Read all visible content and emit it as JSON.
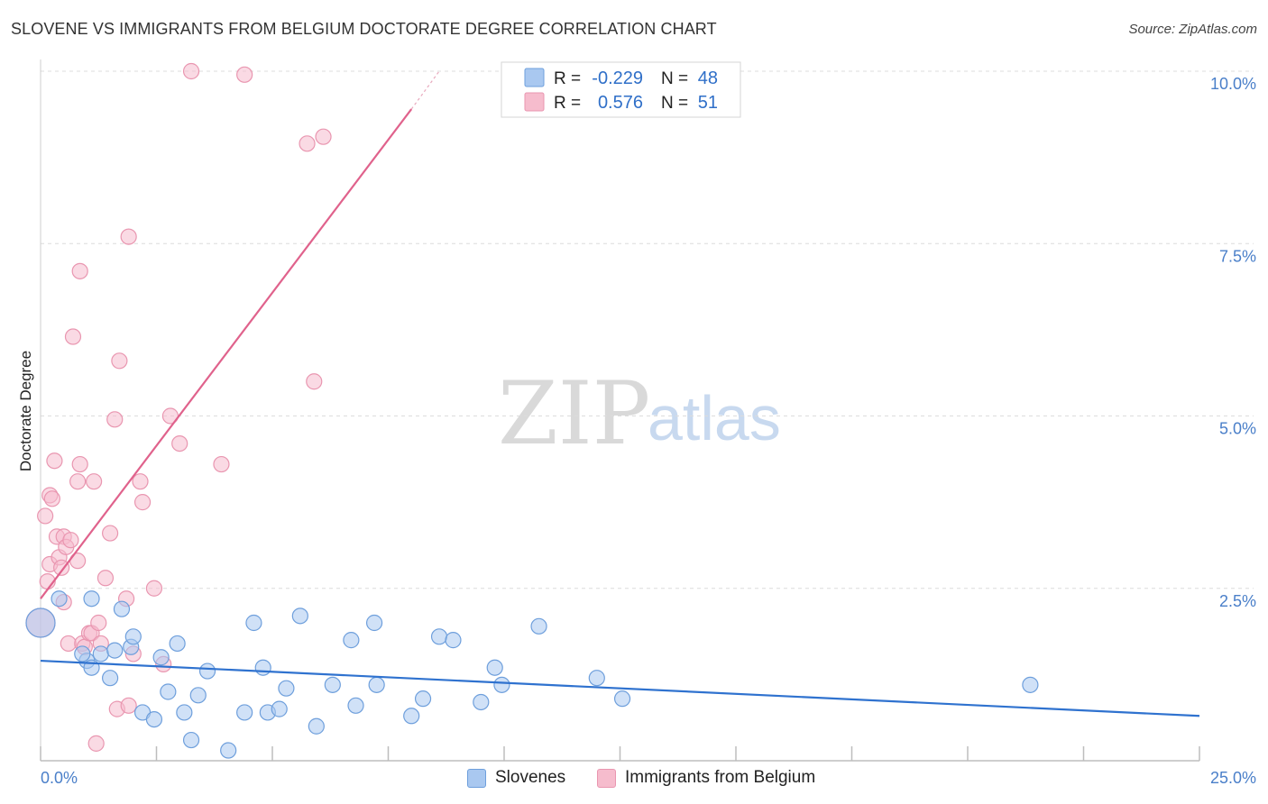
{
  "header": {
    "title": "SLOVENE VS IMMIGRANTS FROM BELGIUM DOCTORATE DEGREE CORRELATION CHART",
    "source": "Source: ZipAtlas.com"
  },
  "colors": {
    "blue_fill": "#a9c8f0",
    "blue_stroke": "#6e9fdc",
    "blue_line": "#2f72cf",
    "pink_fill": "#f6bccd",
    "pink_stroke": "#e996b0",
    "pink_line": "#e0628c",
    "grid": "#dcdcdc",
    "axis_text": "#4a7fc9"
  },
  "legend": {
    "rows": [
      {
        "r_label": "R =",
        "r_value": "-0.229",
        "n_label": "N =",
        "n_value": "48"
      },
      {
        "r_label": "R =",
        "r_value": "0.576",
        "n_label": "N =",
        "n_value": "51"
      }
    ]
  },
  "watermark": {
    "zip": "ZIP",
    "atlas": "atlas"
  },
  "chart_data": {
    "type": "scatter",
    "title": "SLOVENE VS IMMIGRANTS FROM BELGIUM DOCTORATE DEGREE CORRELATION CHART",
    "xlabel": "",
    "ylabel": "Doctorate Degree",
    "xlim": [
      0,
      25
    ],
    "ylim": [
      0,
      10
    ],
    "x_tick_labels": [
      "0.0%",
      "25.0%"
    ],
    "y_ticks": [
      2.5,
      5.0,
      7.5,
      10.0
    ],
    "y_tick_labels": [
      "2.5%",
      "5.0%",
      "7.5%",
      "10.0%"
    ],
    "legend_position": "top-center",
    "series": [
      {
        "name": "Slovenes",
        "color": "#a9c8f0",
        "trend": {
          "x": [
            0,
            25
          ],
          "y": [
            1.45,
            0.65
          ]
        },
        "points": [
          {
            "x": 0.0,
            "y": 2.0,
            "size": "large"
          },
          {
            "x": 0.4,
            "y": 2.35
          },
          {
            "x": 1.1,
            "y": 2.35
          },
          {
            "x": 1.0,
            "y": 1.45
          },
          {
            "x": 0.9,
            "y": 1.55
          },
          {
            "x": 1.1,
            "y": 1.35
          },
          {
            "x": 1.3,
            "y": 1.55
          },
          {
            "x": 1.5,
            "y": 1.2
          },
          {
            "x": 1.6,
            "y": 1.6
          },
          {
            "x": 1.75,
            "y": 2.2
          },
          {
            "x": 1.95,
            "y": 1.65
          },
          {
            "x": 2.0,
            "y": 1.8
          },
          {
            "x": 2.2,
            "y": 0.7
          },
          {
            "x": 2.45,
            "y": 0.6
          },
          {
            "x": 2.6,
            "y": 1.5
          },
          {
            "x": 2.75,
            "y": 1.0
          },
          {
            "x": 2.95,
            "y": 1.7
          },
          {
            "x": 3.1,
            "y": 0.7
          },
          {
            "x": 3.25,
            "y": 0.3
          },
          {
            "x": 3.4,
            "y": 0.95
          },
          {
            "x": 3.6,
            "y": 1.3
          },
          {
            "x": 4.05,
            "y": 0.15
          },
          {
            "x": 4.4,
            "y": 0.7
          },
          {
            "x": 4.6,
            "y": 2.0
          },
          {
            "x": 4.8,
            "y": 1.35
          },
          {
            "x": 4.9,
            "y": 0.7
          },
          {
            "x": 5.15,
            "y": 0.75
          },
          {
            "x": 5.3,
            "y": 1.05
          },
          {
            "x": 5.6,
            "y": 2.1
          },
          {
            "x": 5.95,
            "y": 0.5
          },
          {
            "x": 6.3,
            "y": 1.1
          },
          {
            "x": 6.7,
            "y": 1.75
          },
          {
            "x": 6.8,
            "y": 0.8
          },
          {
            "x": 7.2,
            "y": 2.0
          },
          {
            "x": 7.25,
            "y": 1.1
          },
          {
            "x": 8.0,
            "y": 0.65
          },
          {
            "x": 8.25,
            "y": 0.9
          },
          {
            "x": 8.6,
            "y": 1.8
          },
          {
            "x": 8.9,
            "y": 1.75
          },
          {
            "x": 9.5,
            "y": 0.85
          },
          {
            "x": 9.8,
            "y": 1.35
          },
          {
            "x": 9.95,
            "y": 1.1
          },
          {
            "x": 10.75,
            "y": 1.95
          },
          {
            "x": 12.0,
            "y": 1.2
          },
          {
            "x": 12.55,
            "y": 0.9
          },
          {
            "x": 21.35,
            "y": 1.1
          }
        ]
      },
      {
        "name": "Immigrants from Belgium",
        "color": "#f6bccd",
        "trend": {
          "x": [
            0,
            8.0
          ],
          "y": [
            2.35,
            9.45
          ],
          "dashed_extension_to": {
            "x": 8.6,
            "y": 10.0
          }
        },
        "points": [
          {
            "x": 0.0,
            "y": 2.0,
            "size": "large"
          },
          {
            "x": 0.1,
            "y": 3.55
          },
          {
            "x": 0.15,
            "y": 2.6
          },
          {
            "x": 0.2,
            "y": 2.85
          },
          {
            "x": 0.2,
            "y": 3.85
          },
          {
            "x": 0.25,
            "y": 3.8
          },
          {
            "x": 0.3,
            "y": 4.35
          },
          {
            "x": 0.35,
            "y": 3.25
          },
          {
            "x": 0.4,
            "y": 2.95
          },
          {
            "x": 0.45,
            "y": 2.8
          },
          {
            "x": 0.5,
            "y": 3.25
          },
          {
            "x": 0.5,
            "y": 2.3
          },
          {
            "x": 0.55,
            "y": 3.1
          },
          {
            "x": 0.6,
            "y": 1.7
          },
          {
            "x": 0.65,
            "y": 3.2
          },
          {
            "x": 0.7,
            "y": 6.15
          },
          {
            "x": 0.8,
            "y": 4.05
          },
          {
            "x": 0.8,
            "y": 2.9
          },
          {
            "x": 0.85,
            "y": 4.3
          },
          {
            "x": 0.85,
            "y": 7.1
          },
          {
            "x": 0.9,
            "y": 1.7
          },
          {
            "x": 0.95,
            "y": 1.65
          },
          {
            "x": 1.05,
            "y": 1.85
          },
          {
            "x": 1.1,
            "y": 1.85
          },
          {
            "x": 1.15,
            "y": 4.05
          },
          {
            "x": 1.2,
            "y": 0.25
          },
          {
            "x": 1.25,
            "y": 2.0
          },
          {
            "x": 1.3,
            "y": 1.7
          },
          {
            "x": 1.4,
            "y": 2.65
          },
          {
            "x": 1.5,
            "y": 3.3
          },
          {
            "x": 1.6,
            "y": 4.95
          },
          {
            "x": 1.65,
            "y": 0.75
          },
          {
            "x": 1.7,
            "y": 5.8
          },
          {
            "x": 1.85,
            "y": 2.35
          },
          {
            "x": 1.9,
            "y": 0.8
          },
          {
            "x": 1.9,
            "y": 7.6
          },
          {
            "x": 2.0,
            "y": 1.55
          },
          {
            "x": 2.15,
            "y": 4.05
          },
          {
            "x": 2.2,
            "y": 3.75
          },
          {
            "x": 2.45,
            "y": 2.5
          },
          {
            "x": 2.65,
            "y": 1.4
          },
          {
            "x": 2.8,
            "y": 5.0
          },
          {
            "x": 3.0,
            "y": 4.6
          },
          {
            "x": 3.25,
            "y": 10.0
          },
          {
            "x": 3.9,
            "y": 4.3
          },
          {
            "x": 4.4,
            "y": 9.95
          },
          {
            "x": 5.75,
            "y": 8.95
          },
          {
            "x": 5.9,
            "y": 5.5
          },
          {
            "x": 6.1,
            "y": 9.05
          }
        ]
      }
    ]
  }
}
